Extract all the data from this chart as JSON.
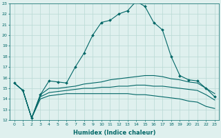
{
  "xlabel": "Humidex (Indice chaleur)",
  "x_values": [
    0,
    1,
    2,
    3,
    4,
    5,
    6,
    7,
    8,
    9,
    10,
    11,
    12,
    13,
    14,
    15,
    16,
    17,
    18,
    19,
    20,
    21,
    22,
    23
  ],
  "line1_marked": [
    15.5,
    14.8,
    12.2,
    14.4,
    15.7,
    15.6,
    15.5,
    17.0,
    18.3,
    20.0,
    21.2,
    21.4,
    22.0,
    22.3,
    23.2,
    22.7,
    21.2,
    20.5,
    18.0,
    16.2,
    15.8,
    15.7,
    15.0,
    14.2
  ],
  "line2": [
    15.5,
    14.8,
    12.2,
    14.4,
    15.0,
    15.0,
    15.1,
    15.2,
    15.4,
    15.5,
    15.6,
    15.8,
    15.9,
    16.0,
    16.1,
    16.2,
    16.2,
    16.1,
    15.9,
    15.8,
    15.6,
    15.5,
    15.0,
    14.5
  ],
  "line3": [
    15.5,
    14.8,
    12.2,
    14.2,
    14.6,
    14.7,
    14.8,
    14.9,
    15.0,
    15.0,
    15.1,
    15.1,
    15.2,
    15.2,
    15.3,
    15.3,
    15.2,
    15.2,
    15.1,
    15.0,
    14.9,
    14.8,
    14.4,
    13.9
  ],
  "line4": [
    15.5,
    14.8,
    12.2,
    14.0,
    14.3,
    14.4,
    14.5,
    14.5,
    14.5,
    14.5,
    14.5,
    14.5,
    14.5,
    14.5,
    14.4,
    14.4,
    14.3,
    14.2,
    14.1,
    14.0,
    13.8,
    13.7,
    13.3,
    13.1
  ],
  "line_color": "#006666",
  "bg_color": "#dff0ee",
  "grid_color": "#b8d8d4",
  "ylim": [
    12,
    23
  ],
  "yticks": [
    12,
    13,
    14,
    15,
    16,
    17,
    18,
    19,
    20,
    21,
    22,
    23
  ],
  "marker": "D",
  "markersize": 2.0,
  "linewidth": 0.8
}
